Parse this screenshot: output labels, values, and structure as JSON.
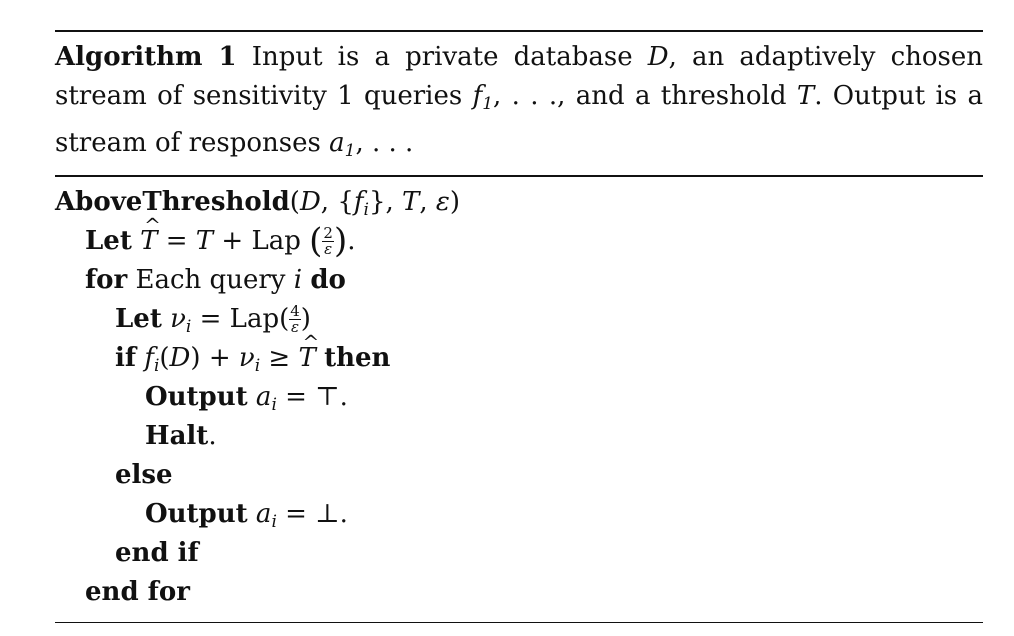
{
  "algorithm": {
    "label": "Algorithm 1",
    "caption": "Input is a private database D, an adaptively chosen stream of sensitivity 1 queries f1,…, and a threshold T. Output is a stream of responses a1,…",
    "procedure_name": "AboveThreshold",
    "procedure_args": "(D, {f_i}, T, ε)",
    "keywords": {
      "let": "Let",
      "for": "for",
      "do": "do",
      "if": "if",
      "then": "then",
      "output": "Output",
      "halt": "Halt",
      "else": "else",
      "end_if": "end if",
      "end_for": "end for"
    },
    "lines": {
      "let_T": "T̂ = T + Lap(2/ε).",
      "for_loop": "Each query i",
      "let_nu": "ν_i = Lap(4/ε)",
      "if_cond": "f_i(D) + ν_i ≥ T̂",
      "output_top": "a_i = ⊤.",
      "output_bot": "a_i = ⊥."
    }
  }
}
